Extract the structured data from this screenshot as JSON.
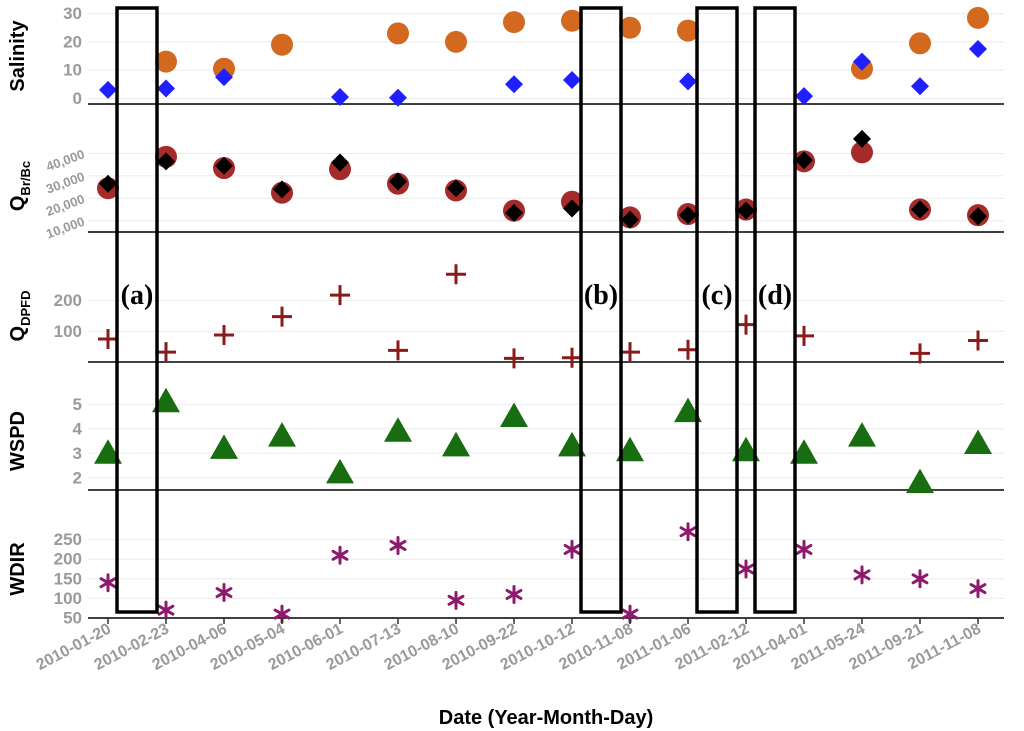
{
  "chart_data": {
    "type": "scatter",
    "dates": [
      "2010-01-20",
      "2010-02-23",
      "2010-04-06",
      "2010-05-04",
      "2010-06-01",
      "2010-07-13",
      "2010-08-10",
      "2010-09-22",
      "2010-10-12",
      "2010-11-08",
      "2011-01-06",
      "2011-02-12",
      "2011-04-01",
      "2011-05-24",
      "2011-09-21",
      "2011-11-08"
    ],
    "xlabel": "Date (Year-Month-Day)",
    "panels": [
      {
        "id": "salinity",
        "ylabel": "Salinity",
        "ylim": [
          -2,
          32
        ],
        "yticks": [
          0,
          10,
          20,
          30
        ],
        "tick_labels": [
          "0",
          "10",
          "20",
          "30"
        ],
        "series": [
          {
            "name": "salinity-orange",
            "marker": "circle",
            "color": "#d2691e",
            "points": [
              [
                1,
                13
              ],
              [
                2,
                10.5
              ],
              [
                3,
                19
              ],
              [
                5,
                23
              ],
              [
                6,
                20
              ],
              [
                7,
                27
              ],
              [
                8,
                27.5
              ],
              [
                9,
                25
              ],
              [
                10,
                24
              ],
              [
                13,
                10.5
              ],
              [
                14,
                19.5
              ],
              [
                15,
                28.5
              ]
            ]
          },
          {
            "name": "salinity-blue",
            "marker": "diamond",
            "color": "#1f1fff",
            "points": [
              [
                0,
                3
              ],
              [
                1,
                3.5
              ],
              [
                2,
                7.5
              ],
              [
                4,
                0.5
              ],
              [
                5,
                0.2
              ],
              [
                7,
                5
              ],
              [
                8,
                6.5
              ],
              [
                10,
                6
              ],
              [
                12,
                0.8
              ],
              [
                13,
                13
              ],
              [
                14,
                4.3
              ],
              [
                15,
                17.5
              ]
            ]
          }
        ]
      },
      {
        "id": "qbr",
        "ylabel_main": "Q",
        "ylabel_sub": "Br/Bc",
        "ylim": [
          5000,
          46000
        ],
        "yticks": [
          10000,
          20000,
          30000,
          40000
        ],
        "tick_labels": [
          "10,000",
          "20,000",
          "30,000",
          "40,000"
        ],
        "series": [
          {
            "name": "qbr-red",
            "marker": "circle",
            "color": "#a52a2a",
            "points": [
              [
                0,
                24500
              ],
              [
                1,
                38500
              ],
              [
                2,
                33500
              ],
              [
                3,
                22500
              ],
              [
                4,
                33000
              ],
              [
                5,
                26500
              ],
              [
                6,
                23500
              ],
              [
                7,
                14500
              ],
              [
                8,
                18500
              ],
              [
                9,
                11500
              ],
              [
                10,
                13000
              ],
              [
                11,
                15000
              ],
              [
                12,
                36500
              ],
              [
                13,
                40500
              ],
              [
                14,
                15000
              ],
              [
                15,
                12500
              ]
            ]
          },
          {
            "name": "qbr-black",
            "marker": "diamond",
            "color": "#000000",
            "points": [
              [
                0,
                26500
              ],
              [
                1,
                36500
              ],
              [
                2,
                34500
              ],
              [
                3,
                24000
              ],
              [
                4,
                36000
              ],
              [
                5,
                27500
              ],
              [
                6,
                24500
              ],
              [
                7,
                13500
              ],
              [
                8,
                15500
              ],
              [
                9,
                10500
              ],
              [
                10,
                12500
              ],
              [
                11,
                14500
              ],
              [
                12,
                37000
              ],
              [
                13,
                46500
              ],
              [
                14,
                15000
              ],
              [
                15,
                12000
              ]
            ]
          }
        ]
      },
      {
        "id": "qdpfd",
        "ylabel_main": "Q",
        "ylabel_sub": "DPFD",
        "ylim": [
          0,
          300
        ],
        "yticks": [
          100,
          200
        ],
        "tick_labels": [
          "100",
          "200"
        ],
        "series": [
          {
            "name": "qdpfd-cross",
            "marker": "plus",
            "color": "#8b1a1a",
            "points": [
              [
                0,
                75
              ],
              [
                1,
                32
              ],
              [
                2,
                88
              ],
              [
                3,
                148
              ],
              [
                4,
                218
              ],
              [
                5,
                38
              ],
              [
                6,
                286
              ],
              [
                7,
                12
              ],
              [
                8,
                14
              ],
              [
                9,
                32
              ],
              [
                10,
                40
              ],
              [
                11,
                122
              ],
              [
                12,
                85
              ],
              [
                14,
                28
              ],
              [
                15,
                70
              ]
            ]
          }
        ]
      },
      {
        "id": "wspd",
        "ylabel": "WSPD",
        "ylim": [
          1.5,
          5.5
        ],
        "yticks": [
          2,
          3,
          4,
          5
        ],
        "tick_labels": [
          "2",
          "3",
          "4",
          "5"
        ],
        "series": [
          {
            "name": "wspd-triangle",
            "marker": "triangle",
            "color": "#176d0f",
            "points": [
              [
                0,
                3.0
              ],
              [
                1,
                5.1
              ],
              [
                2,
                3.2
              ],
              [
                3,
                3.7
              ],
              [
                4,
                2.2
              ],
              [
                5,
                3.9
              ],
              [
                6,
                3.3
              ],
              [
                7,
                4.5
              ],
              [
                8,
                3.3
              ],
              [
                9,
                3.1
              ],
              [
                10,
                4.7
              ],
              [
                11,
                3.1
              ],
              [
                12,
                3.0
              ],
              [
                13,
                3.7
              ],
              [
                14,
                1.8
              ],
              [
                15,
                3.4
              ]
            ]
          }
        ]
      },
      {
        "id": "wdir",
        "ylabel": "WDIR",
        "ylim": [
          50,
          300
        ],
        "yticks": [
          50,
          100,
          150,
          200,
          250
        ],
        "tick_labels": [
          "50",
          "100",
          "150",
          "200",
          "250"
        ],
        "series": [
          {
            "name": "wdir-star",
            "marker": "asterisk",
            "color": "#8e1a6e",
            "points": [
              [
                0,
                140
              ],
              [
                1,
                70
              ],
              [
                2,
                115
              ],
              [
                3,
                60
              ],
              [
                4,
                210
              ],
              [
                5,
                235
              ],
              [
                6,
                95
              ],
              [
                7,
                110
              ],
              [
                8,
                225
              ],
              [
                9,
                60
              ],
              [
                10,
                270
              ],
              [
                11,
                175
              ],
              [
                12,
                225
              ],
              [
                13,
                160
              ],
              [
                14,
                150
              ],
              [
                15,
                125
              ]
            ]
          }
        ]
      }
    ],
    "highlight_boxes": [
      {
        "label": "(a)",
        "after_index": 0
      },
      {
        "label": "(b)",
        "after_index": 8
      },
      {
        "label": "(c)",
        "after_index": 10
      },
      {
        "label": "(d)",
        "after_index": 11
      }
    ]
  }
}
